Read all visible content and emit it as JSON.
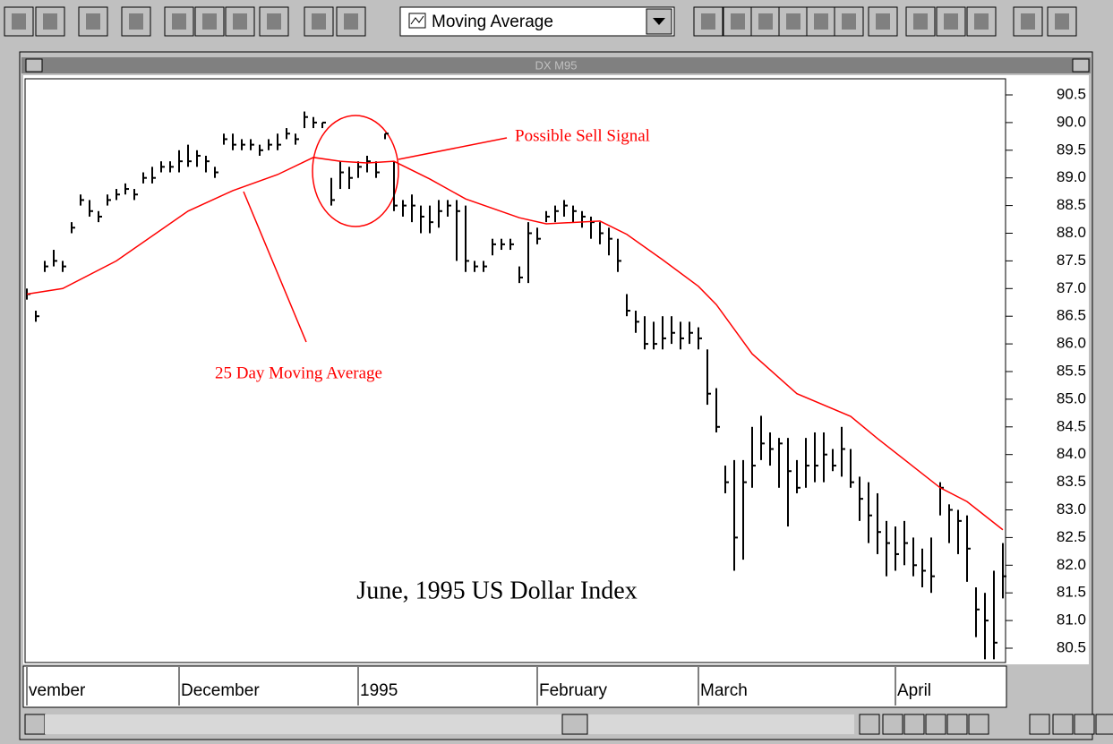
{
  "toolbar": {
    "dropdown": "Moving Average"
  },
  "window": {
    "title": "DX M95"
  },
  "chart_data": {
    "type": "ohlc",
    "title": "June, 1995 US Dollar Index",
    "annotations": [
      "Possible Sell Signal",
      "25 Day Moving Average"
    ],
    "color": "#000000",
    "high": [
      87.0,
      86.6,
      87.5,
      87.7,
      87.5,
      88.2,
      88.7,
      88.6,
      88.4,
      88.7,
      88.8,
      88.9,
      88.8,
      89.1,
      89.2,
      89.3,
      89.3,
      89.5,
      89.6,
      89.5,
      89.4,
      89.2,
      89.8,
      89.8,
      89.7,
      89.7,
      89.6,
      89.7,
      89.8,
      89.9,
      89.8,
      90.2,
      90.1,
      90.0,
      89.0,
      89.3,
      89.2,
      89.3,
      89.4,
      89.3,
      89.8,
      89.3,
      88.6,
      88.7,
      88.5,
      88.5,
      88.6,
      88.6,
      88.6,
      88.5,
      87.5,
      87.5,
      87.9,
      87.9,
      87.9,
      87.4,
      88.2,
      88.1,
      88.4,
      88.5,
      88.6,
      88.5,
      88.4,
      88.3,
      88.2,
      88.1,
      87.9,
      86.9,
      86.6,
      86.5,
      86.4,
      86.5,
      86.5,
      86.4,
      86.4,
      86.3,
      85.9,
      85.2,
      83.8,
      83.9,
      83.9,
      84.5,
      84.7,
      84.4,
      84.3,
      84.3,
      83.9,
      84.3,
      84.4,
      84.4,
      84.1,
      84.5,
      84.1,
      83.6,
      83.5,
      83.3,
      82.8,
      82.7,
      82.8,
      82.5,
      82.3,
      82.5,
      83.5,
      83.1,
      83.0,
      82.9,
      81.6,
      81.5,
      81.9,
      82.4
    ],
    "low": [
      86.8,
      86.4,
      87.3,
      87.4,
      87.3,
      88.0,
      88.5,
      88.3,
      88.2,
      88.5,
      88.6,
      88.7,
      88.6,
      88.9,
      88.9,
      89.1,
      89.1,
      89.1,
      89.2,
      89.2,
      89.1,
      89.0,
      89.6,
      89.5,
      89.5,
      89.5,
      89.4,
      89.5,
      89.5,
      89.7,
      89.6,
      89.9,
      89.9,
      89.9,
      88.5,
      88.8,
      88.8,
      89.0,
      89.1,
      89.0,
      89.7,
      88.4,
      88.3,
      88.2,
      88.0,
      88.0,
      88.1,
      88.3,
      87.5,
      87.3,
      87.3,
      87.3,
      87.6,
      87.7,
      87.7,
      87.1,
      87.1,
      87.8,
      88.2,
      88.2,
      88.3,
      88.2,
      88.1,
      87.9,
      87.8,
      87.6,
      87.3,
      86.5,
      86.2,
      85.9,
      85.9,
      85.9,
      86.0,
      85.9,
      86.0,
      85.9,
      84.9,
      84.4,
      83.3,
      81.9,
      82.1,
      83.4,
      83.9,
      83.8,
      83.4,
      82.7,
      83.3,
      83.4,
      83.5,
      83.5,
      83.7,
      83.6,
      83.4,
      82.8,
      82.4,
      82.2,
      81.8,
      81.9,
      82.0,
      81.8,
      81.6,
      81.5,
      82.9,
      82.4,
      82.2,
      81.7,
      80.7,
      80.3,
      80.3,
      81.4
    ],
    "close": [
      86.9,
      86.5,
      87.4,
      87.5,
      87.4,
      88.1,
      88.6,
      88.4,
      88.3,
      88.6,
      88.7,
      88.8,
      88.7,
      89.0,
      89.0,
      89.2,
      89.2,
      89.3,
      89.3,
      89.4,
      89.3,
      89.1,
      89.7,
      89.6,
      89.6,
      89.6,
      89.5,
      89.6,
      89.6,
      89.8,
      89.7,
      90.1,
      90.0,
      90.0,
      88.6,
      89.1,
      89.0,
      89.2,
      89.3,
      89.1,
      89.8,
      88.5,
      88.5,
      88.5,
      88.3,
      88.2,
      88.4,
      88.5,
      88.4,
      87.5,
      87.4,
      87.4,
      87.8,
      87.8,
      87.8,
      87.2,
      88.0,
      87.9,
      88.3,
      88.4,
      88.5,
      88.4,
      88.3,
      88.2,
      88.0,
      87.9,
      87.5,
      86.6,
      86.4,
      86.0,
      86.0,
      86.1,
      86.2,
      86.1,
      86.2,
      86.1,
      85.1,
      84.5,
      83.5,
      82.5,
      83.5,
      83.8,
      84.2,
      84.1,
      84.2,
      83.7,
      83.4,
      83.8,
      83.8,
      84.0,
      83.8,
      84.1,
      83.5,
      83.2,
      82.9,
      82.6,
      82.4,
      82.2,
      82.4,
      82.0,
      81.9,
      81.8,
      83.4,
      83.0,
      82.8,
      82.3,
      81.2,
      81.0,
      80.6,
      81.8
    ],
    "moving_average": {
      "color": "#ff0000",
      "x": [
        0,
        4,
        10,
        18,
        23,
        28,
        32,
        35,
        38,
        41,
        45,
        49,
        55,
        58,
        64,
        67,
        71,
        75,
        77,
        81,
        86,
        92,
        95,
        102,
        105,
        109
      ],
      "values": [
        86.9,
        87.0,
        87.5,
        88.4,
        88.77,
        89.06,
        89.37,
        89.3,
        89.27,
        89.3,
        88.98,
        88.62,
        88.28,
        88.17,
        88.22,
        87.98,
        87.52,
        87.04,
        86.71,
        85.82,
        85.1,
        84.69,
        84.29,
        83.4,
        83.15,
        82.64
      ]
    },
    "xticks": [
      {
        "value": 0,
        "label": "vember"
      },
      {
        "value": 17,
        "label": "December"
      },
      {
        "value": 37,
        "label": "1995"
      },
      {
        "value": 57,
        "label": "February"
      },
      {
        "value": 75,
        "label": "March"
      },
      {
        "value": 97,
        "label": "April"
      }
    ],
    "ylim": [
      80.25,
      90.75
    ],
    "yticks": [
      80.5,
      {
        "value": 81,
        "label": "81.0"
      },
      81.5,
      {
        "value": 82,
        "label": "82.0"
      },
      82.5,
      {
        "value": 83,
        "label": "83.0"
      },
      83.5,
      {
        "value": 84,
        "label": "84.0"
      },
      84.5,
      {
        "value": 85,
        "label": "85.0"
      },
      85.5,
      {
        "value": 86,
        "label": "86.0"
      },
      86.5,
      {
        "value": 87,
        "label": "87.0"
      },
      87.5,
      {
        "value": 88,
        "label": "88.0"
      },
      88.5,
      {
        "value": 89,
        "label": "89.0"
      },
      89.5,
      {
        "value": 90,
        "label": "90.0"
      },
      90.5
    ]
  }
}
